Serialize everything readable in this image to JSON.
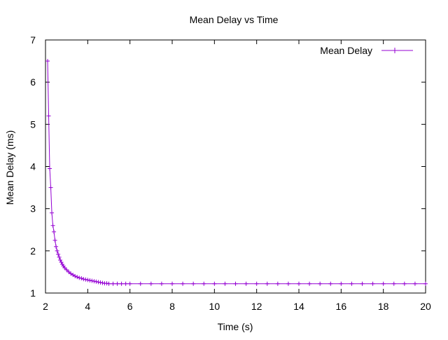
{
  "colors": {
    "series": "#9400d3",
    "axis": "#000000",
    "background": "#ffffff"
  },
  "chart_data": {
    "type": "line",
    "title": "Mean Delay vs Time",
    "xlabel": "Time (s)",
    "ylabel": "Mean Delay (ms)",
    "xlim": [
      2,
      20
    ],
    "ylim": [
      1,
      7
    ],
    "xticks": [
      "2",
      "4",
      "6",
      "8",
      "10",
      "12",
      "14",
      "16",
      "18",
      "20"
    ],
    "yticks": [
      "1",
      "2",
      "3",
      "4",
      "5",
      "6",
      "7"
    ],
    "grid": false,
    "legend": {
      "position": "top-right"
    },
    "series": [
      {
        "name": "Mean Delay",
        "marker": "plus",
        "x": [
          2.1,
          2.15,
          2.2,
          2.25,
          2.3,
          2.35,
          2.4,
          2.45,
          2.5,
          2.55,
          2.6,
          2.65,
          2.7,
          2.75,
          2.8,
          2.85,
          2.9,
          3.0,
          3.1,
          3.2,
          3.3,
          3.4,
          3.5,
          3.6,
          3.7,
          3.8,
          3.9,
          4.0,
          4.1,
          4.2,
          4.3,
          4.4,
          4.5,
          4.6,
          4.7,
          4.8,
          4.9,
          5.0,
          5.2,
          5.4,
          5.6,
          5.8,
          6.0,
          6.5,
          7.0,
          7.5,
          8.0,
          8.5,
          9.0,
          9.5,
          10.0,
          10.5,
          11.0,
          11.5,
          12.0,
          12.5,
          13.0,
          13.5,
          14.0,
          14.5,
          15.0,
          15.5,
          16.0,
          16.5,
          17.0,
          17.5,
          18.0,
          18.5,
          19.0,
          19.5,
          20.0
        ],
        "values": [
          6.5,
          5.2,
          3.95,
          3.5,
          2.9,
          2.6,
          2.45,
          2.25,
          2.1,
          2.0,
          1.92,
          1.85,
          1.78,
          1.73,
          1.68,
          1.64,
          1.6,
          1.55,
          1.5,
          1.46,
          1.43,
          1.4,
          1.38,
          1.36,
          1.35,
          1.33,
          1.32,
          1.31,
          1.3,
          1.29,
          1.28,
          1.27,
          1.26,
          1.25,
          1.24,
          1.23,
          1.23,
          1.22,
          1.22,
          1.22,
          1.22,
          1.22,
          1.22,
          1.22,
          1.22,
          1.22,
          1.22,
          1.22,
          1.22,
          1.22,
          1.22,
          1.22,
          1.22,
          1.22,
          1.22,
          1.22,
          1.22,
          1.22,
          1.22,
          1.22,
          1.22,
          1.22,
          1.22,
          1.22,
          1.22,
          1.22,
          1.22,
          1.22,
          1.22,
          1.22,
          1.22
        ]
      }
    ]
  }
}
